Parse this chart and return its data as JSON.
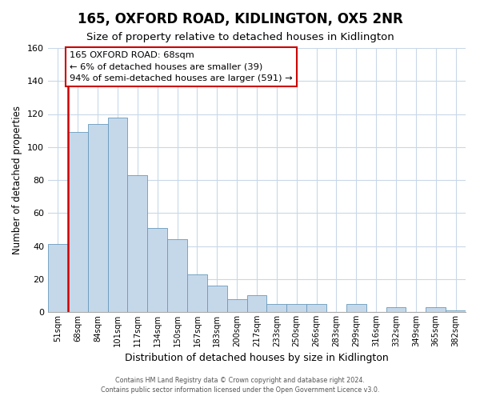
{
  "title": "165, OXFORD ROAD, KIDLINGTON, OX5 2NR",
  "subtitle": "Size of property relative to detached houses in Kidlington",
  "xlabel": "Distribution of detached houses by size in Kidlington",
  "ylabel": "Number of detached properties",
  "bar_labels": [
    "51sqm",
    "68sqm",
    "84sqm",
    "101sqm",
    "117sqm",
    "134sqm",
    "150sqm",
    "167sqm",
    "183sqm",
    "200sqm",
    "217sqm",
    "233sqm",
    "250sqm",
    "266sqm",
    "283sqm",
    "299sqm",
    "316sqm",
    "332sqm",
    "349sqm",
    "365sqm",
    "382sqm"
  ],
  "bar_values": [
    41,
    109,
    114,
    118,
    83,
    51,
    44,
    23,
    16,
    8,
    10,
    5,
    5,
    5,
    0,
    5,
    0,
    3,
    0,
    3,
    1
  ],
  "bar_color": "#c5d8ea",
  "bar_edge_color": "#6699bb",
  "ylim": [
    0,
    160
  ],
  "yticks": [
    0,
    20,
    40,
    60,
    80,
    100,
    120,
    140,
    160
  ],
  "annotation_title": "165 OXFORD ROAD: 68sqm",
  "annotation_line1": "← 6% of detached houses are smaller (39)",
  "annotation_line2": "94% of semi-detached houses are larger (591) →",
  "annotation_box_color": "#ffffff",
  "annotation_border_color": "#cc0000",
  "vline_color": "#cc0000",
  "vline_bar_index": 1,
  "footer_line1": "Contains HM Land Registry data © Crown copyright and database right 2024.",
  "footer_line2": "Contains public sector information licensed under the Open Government Licence v3.0.",
  "background_color": "#ffffff",
  "grid_color": "#c8d8e8",
  "title_fontsize": 12,
  "subtitle_fontsize": 9.5,
  "ylabel_fontsize": 8.5,
  "xlabel_fontsize": 9
}
